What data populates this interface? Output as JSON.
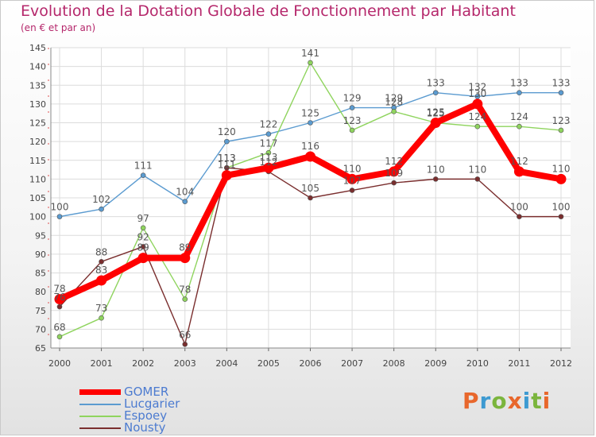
{
  "title": "Evolution de la Dotation Globale de Fonctionnement par Habitant",
  "subtitle": "(en € et par an)",
  "logo": {
    "text": "Proxiti",
    "letters": [
      {
        "ch": "P",
        "color": "#e8672c"
      },
      {
        "ch": "r",
        "color": "#3d9ad1"
      },
      {
        "ch": "o",
        "color": "#7bb53d"
      },
      {
        "ch": "x",
        "color": "#e8672c"
      },
      {
        "ch": "i",
        "color": "#3d9ad1"
      },
      {
        "ch": "t",
        "color": "#7bb53d"
      },
      {
        "ch": "i",
        "color": "#e8672c"
      }
    ]
  },
  "chart_data": {
    "type": "line",
    "title": "Evolution de la Dotation Globale de Fonctionnement par Habitant",
    "subtitle": "(en € et par an)",
    "x": [
      2000,
      2001,
      2002,
      2003,
      2004,
      2005,
      2006,
      2007,
      2008,
      2009,
      2010,
      2011,
      2012
    ],
    "ylim": [
      65,
      145
    ],
    "yticks": [
      65,
      70,
      75,
      80,
      85,
      90,
      95,
      100,
      105,
      110,
      115,
      120,
      125,
      130,
      135,
      140,
      145
    ],
    "grid": true,
    "legend_position": "bottom-left",
    "series": [
      {
        "name": "Lucgarier",
        "color": "#5b9bd0",
        "values": [
          100,
          102,
          111,
          104,
          120,
          122,
          125,
          129,
          129,
          133,
          132,
          133,
          133
        ]
      },
      {
        "name": "Espoey",
        "color": "#8fd45e",
        "values": [
          68,
          73,
          97,
          78,
          113,
          117,
          141,
          123,
          128,
          125,
          124,
          124,
          123
        ]
      },
      {
        "name": "Nousty",
        "color": "#7a2e2e",
        "values": [
          76,
          88,
          92,
          66,
          113,
          112,
          105,
          107,
          109,
          110,
          110,
          100,
          100
        ]
      },
      {
        "name": "GOMER",
        "color": "#ff0000",
        "values": [
          78,
          83,
          89,
          89,
          111,
          113,
          116,
          110,
          112,
          125,
          130,
          112,
          110
        ]
      }
    ],
    "legend": [
      "GOMER",
      "Lucgarier",
      "Espoey",
      "Nousty"
    ]
  }
}
